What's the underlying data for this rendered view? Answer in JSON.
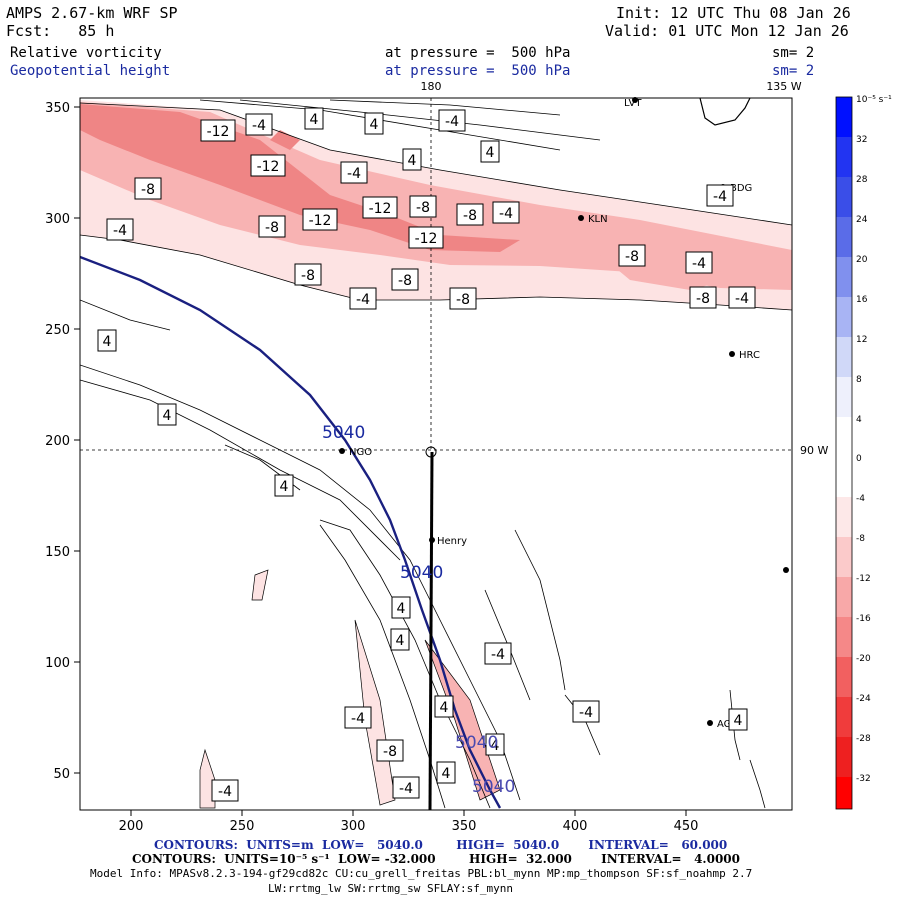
{
  "header": {
    "model": "AMPS 2.67-km WRF SP",
    "forecast": "Fcst:   85 h",
    "init": "Init: 12 UTC Thu 08 Jan 26",
    "valid": "Valid: 01 UTC Mon 12 Jan 26"
  },
  "fields": [
    {
      "name": "Relative vorticity",
      "level": "at pressure =  500 hPa",
      "smooth": "sm= 2",
      "color": "#000000"
    },
    {
      "name": "Geopotential height",
      "level": "at pressure =  500 hPa",
      "smooth": "sm= 2",
      "color": "#1a2aa0"
    }
  ],
  "top_labels": {
    "lon_180": "180",
    "lon_135": "135 W"
  },
  "right_label": "90 W",
  "y_ticks": [
    "350",
    "300",
    "250",
    "200",
    "150",
    "100",
    "50"
  ],
  "x_ticks": [
    "200",
    "250",
    "300",
    "350",
    "400",
    "450"
  ],
  "stations": [
    "LVT",
    "BDG",
    "KLN",
    "HRC",
    "NGO",
    "Henry",
    "AGZ"
  ],
  "vorticity_labels": [
    "-12",
    "-4",
    "4",
    "4",
    "-4",
    "4",
    "-12",
    "4",
    "-8",
    "-4",
    "-12",
    "-12",
    "-8",
    "-8",
    "-4",
    "-4",
    "-4",
    "-8",
    "-12",
    "-8",
    "-8",
    "-8",
    "-4",
    "-8",
    "-4",
    "-8",
    "-4",
    "4",
    "4",
    "4",
    "4",
    "4",
    "-4",
    "-4",
    "4",
    "-4",
    "-8",
    "4",
    "4",
    "-4",
    "-4",
    "4"
  ],
  "height_labels": [
    "5040",
    "5040",
    "5040",
    "5040"
  ],
  "colorbar": {
    "unit": "10⁻⁵ s⁻¹",
    "labels": [
      "32",
      "28",
      "24",
      "20",
      "16",
      "12",
      "8",
      "4",
      "0",
      "-4",
      "-8",
      "-12",
      "-16",
      "-20",
      "-24",
      "-28",
      "-32"
    ]
  },
  "footer": {
    "line1": "CONTOURS:  UNITS=m  LOW=   5040.0        HIGH=  5040.0       INTERVAL=   60.000",
    "line2": "CONTOURS:  UNITS=10⁻⁵ s⁻¹  LOW= -32.000        HIGH=  32.000       INTERVAL=   4.0000",
    "line3": "Model Info: MPASv8.2.3-194-gf29cd82c CU:cu_grell_freitas PBL:bl_mynn MP:mp_thompson SF:sf_noahmp 2.7",
    "line4": "LW:rrtmg_lw SW:rrtmg_sw SFLAY:sf_mynn"
  }
}
